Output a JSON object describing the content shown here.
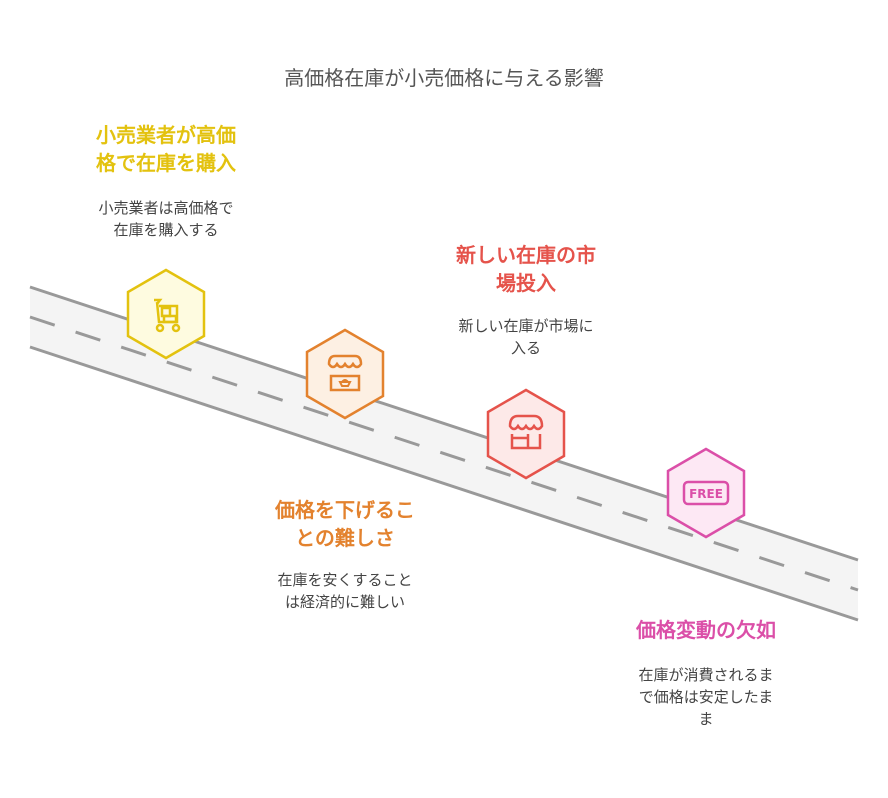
{
  "title": "高価格在庫が小売価格に与える影響",
  "colors": {
    "road": "#f4f4f4",
    "road_line": "#999999"
  },
  "steps": [
    {
      "heading": "小売業者が高価格で在庫を購入",
      "heading_lines": "小売業者が高価\n格で在庫を購入",
      "desc": "小売業者は高価格で\n在庫を購入する",
      "icon": "shopping-cart-boxes-icon",
      "color": "#e3c20f",
      "fill": "#fefbe0"
    },
    {
      "heading": "価格を下げることの難しさ",
      "heading_lines": "価格を下げるこ\nとの難しさ",
      "desc": "在庫を安くすること\nは経済的に難しい",
      "icon": "market-stall-icon",
      "color": "#e3822e",
      "fill": "#fdf0e3"
    },
    {
      "heading": "新しい在庫の市場投入",
      "heading_lines": "新しい在庫の市\n場投入",
      "desc": "新しい在庫が市場に\n入る",
      "icon": "storefront-icon",
      "color": "#e5534b",
      "fill": "#fde9e8"
    },
    {
      "heading": "価格変動の欠如",
      "heading_lines": "価格変動の欠如",
      "desc": "在庫が消費されるま\nで価格は安定したま\nま",
      "icon": "free-tag-icon",
      "icon_text": "FREE",
      "color": "#db4fa8",
      "fill": "#fde8f4"
    }
  ]
}
